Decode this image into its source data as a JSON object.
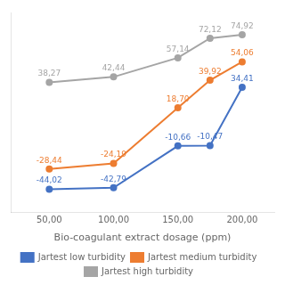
{
  "chart_data": {
    "type": "line",
    "xlabel": "Bio-coagulant extract dosage (ppm)",
    "x": [
      50,
      100,
      150,
      175,
      200
    ],
    "series": [
      {
        "name": "Jartest low turbidity",
        "color": "#4472C4",
        "marker": "circle",
        "values": [
          -44.02,
          -42.79,
          -10.66,
          -10.47,
          34.41
        ],
        "value_labels": [
          "-44,02",
          "-42,79",
          "-10,66",
          "-10,47",
          "34,41"
        ]
      },
      {
        "name": "Jartest medium turbidity",
        "color": "#ED7D31",
        "marker": "circle",
        "values": [
          -28.44,
          -24.19,
          18.7,
          39.92,
          54.06
        ],
        "value_labels": [
          "-28,44",
          "-24,19",
          "18,70",
          "39,92",
          "54,06"
        ]
      },
      {
        "name": "Jartest high turbidity",
        "color": "#A5A5A5",
        "marker": "circle",
        "values": [
          38.27,
          42.44,
          57.14,
          72.12,
          74.92
        ],
        "value_labels": [
          "38,27",
          "42,44",
          "57,14",
          "72,12",
          "74,92"
        ]
      }
    ],
    "xlim": [
      20,
      225
    ],
    "xticks": [
      {
        "value": 50,
        "label": "50,00"
      },
      {
        "value": 100,
        "label": "100,00"
      },
      {
        "value": 150,
        "label": "150,00"
      },
      {
        "value": 200,
        "label": "200,00"
      }
    ],
    "ylim": [
      -62,
      92
    ],
    "yticks": [],
    "tick_labels": "x",
    "grid": false,
    "legend": "bottom",
    "data_labels": true
  }
}
